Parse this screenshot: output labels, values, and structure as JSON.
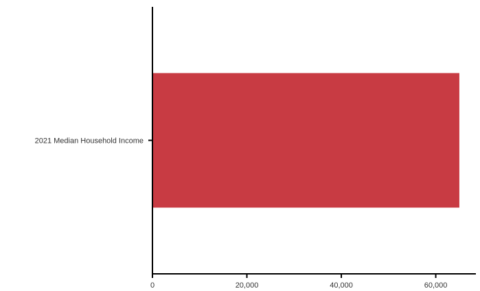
{
  "chart_data": {
    "type": "bar",
    "orientation": "horizontal",
    "categories": [
      "2021 Median Household Income"
    ],
    "values": [
      65000
    ],
    "title": "",
    "xlabel": "",
    "ylabel": "",
    "xlim": [
      0,
      68500
    ],
    "x_ticks": [
      {
        "value": 0,
        "label": "0"
      },
      {
        "value": 20000,
        "label": "20,000"
      },
      {
        "value": 40000,
        "label": "40,000"
      },
      {
        "value": 60000,
        "label": "60,000"
      }
    ],
    "grid": false,
    "legend": "none",
    "bar_color": "#c83b43"
  }
}
